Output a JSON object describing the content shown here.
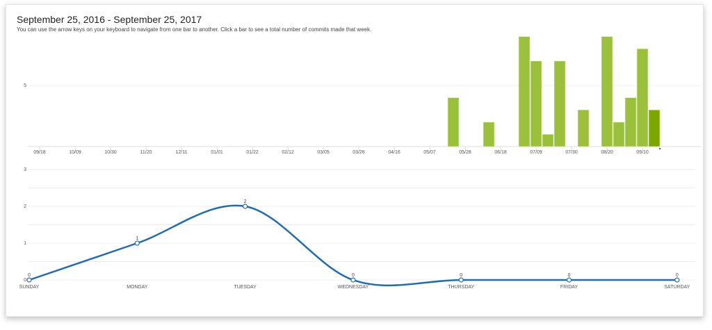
{
  "header": {
    "title": "September 25, 2016 - September 25, 2017",
    "subtitle": "You can use the arrow keys on your keyboard to navigate from one bar to another. Click a bar to see a total number of commits made that week."
  },
  "colors": {
    "bar": "#9bc13c",
    "bar_selected": "#7aa800",
    "line": "#1f6bb5",
    "grid": "#ececec"
  },
  "chart_data": [
    {
      "type": "bar",
      "title": "",
      "ylim": [
        0,
        9
      ],
      "yticks": [
        5
      ],
      "xtick_labels": [
        "09/18",
        "10/09",
        "10/30",
        "11/20",
        "12/11",
        "01/01",
        "01/22",
        "02/12",
        "03/05",
        "03/26",
        "04/16",
        "05/07",
        "05/28",
        "06/18",
        "07/09",
        "07/30",
        "08/20",
        "09/10"
      ],
      "first_week": "09/18",
      "week_count": 53,
      "bars": [
        {
          "week": "05/21",
          "value": 4
        },
        {
          "week": "06/11",
          "value": 2
        },
        {
          "week": "07/02",
          "value": 9
        },
        {
          "week": "07/09",
          "value": 7
        },
        {
          "week": "07/16",
          "value": 1
        },
        {
          "week": "07/23",
          "value": 7
        },
        {
          "week": "08/06",
          "value": 3
        },
        {
          "week": "08/20",
          "value": 9
        },
        {
          "week": "08/27",
          "value": 2
        },
        {
          "week": "09/03",
          "value": 4
        },
        {
          "week": "09/10",
          "value": 8
        },
        {
          "week": "09/17",
          "value": 3,
          "selected": true
        }
      ],
      "grid": true
    },
    {
      "type": "line",
      "title": "",
      "ylim": [
        0,
        3
      ],
      "yticks": [
        0,
        1,
        2,
        3
      ],
      "categories": [
        "SUNDAY",
        "MONDAY",
        "TUESDAY",
        "WEDNESDAY",
        "THURSDAY",
        "FRIDAY",
        "SATURDAY"
      ],
      "values": [
        0,
        1,
        2,
        0,
        0,
        0,
        0
      ],
      "grid": true
    }
  ]
}
